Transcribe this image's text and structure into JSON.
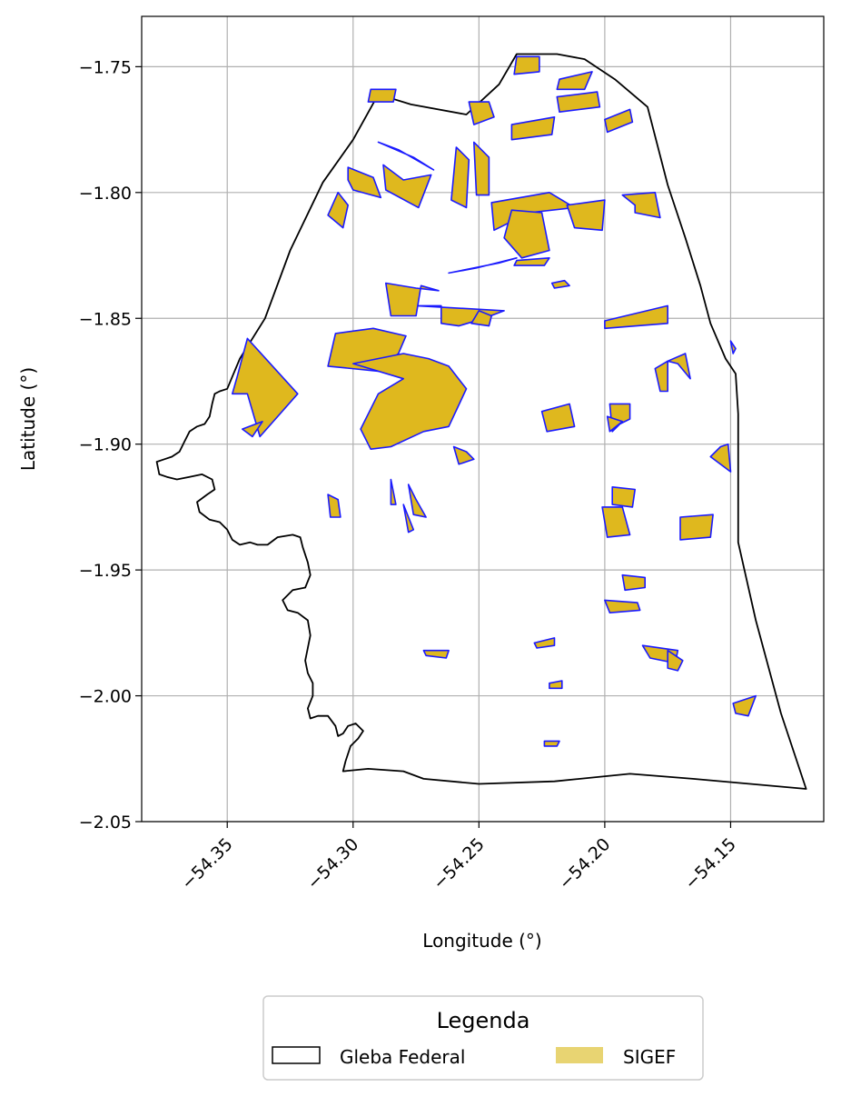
{
  "chart_data": {
    "type": "map",
    "title": "",
    "xlabel": "Longitude (°)",
    "ylabel": "Latitude (°)",
    "xlim": [
      -54.384,
      -54.113
    ],
    "ylim": [
      -2.05,
      -1.73
    ],
    "x_ticks": [
      -54.35,
      -54.3,
      -54.25,
      -54.2,
      -54.15
    ],
    "x_tick_labels": [
      "−54.35",
      "−54.30",
      "−54.25",
      "−54.20",
      "−54.15"
    ],
    "y_ticks": [
      -1.75,
      -1.8,
      -1.85,
      -1.9,
      -1.95,
      -2.0,
      -2.05
    ],
    "y_tick_labels": [
      "−1.75",
      "−1.80",
      "−1.85",
      "−1.90",
      "−1.95",
      "−2.00",
      "−2.05"
    ],
    "grid": true,
    "legend": {
      "title": "Legenda",
      "placement": "bottom-center",
      "entries": [
        {
          "label": "Gleba Federal",
          "style": "outline",
          "edge_color": "#000000",
          "face_color": "#ffffff"
        },
        {
          "label": "SIGEF",
          "style": "fill",
          "face_color": "#e8d472"
        }
      ]
    },
    "colors": {
      "gleba_edge": "#000000",
      "sigef_face": "#dfb81e",
      "sigef_edge": "#1a1aff",
      "grid": "#b0b0b0"
    },
    "gleba_federal": [
      [
        -54.35,
        -1.878
      ],
      [
        -54.345,
        -1.866
      ],
      [
        -54.335,
        -1.85
      ],
      [
        -54.325,
        -1.823
      ],
      [
        -54.312,
        -1.796
      ],
      [
        -54.3,
        -1.779
      ],
      [
        -54.29,
        -1.761
      ],
      [
        -54.277,
        -1.765
      ],
      [
        -54.255,
        -1.769
      ],
      [
        -54.242,
        -1.757
      ],
      [
        -54.235,
        -1.745
      ],
      [
        -54.219,
        -1.745
      ],
      [
        -54.208,
        -1.747
      ],
      [
        -54.196,
        -1.755
      ],
      [
        -54.183,
        -1.766
      ],
      [
        -54.175,
        -1.797
      ],
      [
        -54.168,
        -1.818
      ],
      [
        -54.162,
        -1.837
      ],
      [
        -54.158,
        -1.852
      ],
      [
        -54.152,
        -1.866
      ],
      [
        -54.148,
        -1.872
      ],
      [
        -54.147,
        -1.888
      ],
      [
        -54.147,
        -1.939
      ],
      [
        -54.14,
        -1.97
      ],
      [
        -54.13,
        -2.007
      ],
      [
        -54.12,
        -2.037
      ],
      [
        -54.165,
        -2.033
      ],
      [
        -54.19,
        -2.031
      ],
      [
        -54.22,
        -2.034
      ],
      [
        -54.25,
        -2.035
      ],
      [
        -54.272,
        -2.033
      ],
      [
        -54.28,
        -2.03
      ],
      [
        -54.294,
        -2.029
      ],
      [
        -54.304,
        -2.03
      ],
      [
        -54.303,
        -2.026
      ],
      [
        -54.301,
        -2.02
      ],
      [
        -54.298,
        -2.017
      ],
      [
        -54.296,
        -2.014
      ],
      [
        -54.299,
        -2.011
      ],
      [
        -54.302,
        -2.012
      ],
      [
        -54.304,
        -2.015
      ],
      [
        -54.306,
        -2.016
      ],
      [
        -54.307,
        -2.012
      ],
      [
        -54.31,
        -2.008
      ],
      [
        -54.314,
        -2.008
      ],
      [
        -54.317,
        -2.009
      ],
      [
        -54.318,
        -2.005
      ],
      [
        -54.316,
        -2.0
      ],
      [
        -54.316,
        -1.995
      ],
      [
        -54.318,
        -1.991
      ],
      [
        -54.319,
        -1.986
      ],
      [
        -54.318,
        -1.981
      ],
      [
        -54.317,
        -1.976
      ],
      [
        -54.318,
        -1.97
      ],
      [
        -54.322,
        -1.967
      ],
      [
        -54.326,
        -1.966
      ],
      [
        -54.328,
        -1.962
      ],
      [
        -54.324,
        -1.958
      ],
      [
        -54.319,
        -1.957
      ],
      [
        -54.317,
        -1.952
      ],
      [
        -54.318,
        -1.947
      ],
      [
        -54.32,
        -1.941
      ],
      [
        -54.321,
        -1.937
      ],
      [
        -54.324,
        -1.936
      ],
      [
        -54.33,
        -1.937
      ],
      [
        -54.334,
        -1.94
      ],
      [
        -54.338,
        -1.94
      ],
      [
        -54.341,
        -1.939
      ],
      [
        -54.345,
        -1.94
      ],
      [
        -54.348,
        -1.938
      ],
      [
        -54.35,
        -1.934
      ],
      [
        -54.353,
        -1.931
      ],
      [
        -54.357,
        -1.93
      ],
      [
        -54.361,
        -1.927
      ],
      [
        -54.362,
        -1.923
      ],
      [
        -54.358,
        -1.92
      ],
      [
        -54.355,
        -1.918
      ],
      [
        -54.356,
        -1.914
      ],
      [
        -54.36,
        -1.912
      ],
      [
        -54.365,
        -1.913
      ],
      [
        -54.37,
        -1.914
      ],
      [
        -54.374,
        -1.913
      ],
      [
        -54.377,
        -1.912
      ],
      [
        -54.378,
        -1.907
      ],
      [
        -54.375,
        -1.906
      ],
      [
        -54.372,
        -1.905
      ],
      [
        -54.369,
        -1.903
      ],
      [
        -54.367,
        -1.899
      ],
      [
        -54.365,
        -1.895
      ],
      [
        -54.362,
        -1.893
      ],
      [
        -54.359,
        -1.892
      ],
      [
        -54.357,
        -1.889
      ],
      [
        -54.356,
        -1.884
      ],
      [
        -54.355,
        -1.88
      ],
      [
        -54.353,
        -1.879
      ],
      [
        -54.35,
        -1.878
      ]
    ],
    "sigef_parcels": [
      [
        [
          -54.302,
          -1.79
        ],
        [
          -54.292,
          -1.794
        ],
        [
          -54.289,
          -1.802
        ],
        [
          -54.3,
          -1.799
        ],
        [
          -54.302,
          -1.795
        ]
      ],
      [
        [
          -54.288,
          -1.789
        ],
        [
          -54.28,
          -1.795
        ],
        [
          -54.269,
          -1.793
        ],
        [
          -54.274,
          -1.806
        ],
        [
          -54.287,
          -1.799
        ]
      ],
      [
        [
          -54.29,
          -1.78
        ],
        [
          -54.276,
          -1.786
        ],
        [
          -54.268,
          -1.791
        ],
        [
          -54.282,
          -1.783
        ]
      ],
      [
        [
          -54.306,
          -1.8
        ],
        [
          -54.31,
          -1.809
        ],
        [
          -54.304,
          -1.814
        ],
        [
          -54.302,
          -1.805
        ]
      ],
      [
        [
          -54.294,
          -1.764
        ],
        [
          -54.284,
          -1.764
        ],
        [
          -54.283,
          -1.759
        ],
        [
          -54.293,
          -1.759
        ]
      ],
      [
        [
          -54.259,
          -1.782
        ],
        [
          -54.254,
          -1.787
        ],
        [
          -54.255,
          -1.806
        ],
        [
          -54.261,
          -1.803
        ]
      ],
      [
        [
          -54.252,
          -1.78
        ],
        [
          -54.246,
          -1.786
        ],
        [
          -54.246,
          -1.801
        ],
        [
          -54.251,
          -1.801
        ]
      ],
      [
        [
          -54.236,
          -1.753
        ],
        [
          -54.226,
          -1.752
        ],
        [
          -54.226,
          -1.746
        ],
        [
          -54.235,
          -1.746
        ]
      ],
      [
        [
          -54.218,
          -1.755
        ],
        [
          -54.205,
          -1.752
        ],
        [
          -54.208,
          -1.759
        ],
        [
          -54.219,
          -1.759
        ]
      ],
      [
        [
          -54.219,
          -1.762
        ],
        [
          -54.203,
          -1.76
        ],
        [
          -54.202,
          -1.766
        ],
        [
          -54.218,
          -1.768
        ]
      ],
      [
        [
          -54.237,
          -1.773
        ],
        [
          -54.22,
          -1.77
        ],
        [
          -54.221,
          -1.777
        ],
        [
          -54.237,
          -1.779
        ]
      ],
      [
        [
          -54.254,
          -1.764
        ],
        [
          -54.246,
          -1.764
        ],
        [
          -54.244,
          -1.77
        ],
        [
          -54.252,
          -1.773
        ]
      ],
      [
        [
          -54.2,
          -1.771
        ],
        [
          -54.19,
          -1.767
        ],
        [
          -54.189,
          -1.772
        ],
        [
          -54.199,
          -1.776
        ]
      ],
      [
        [
          -54.245,
          -1.804
        ],
        [
          -54.222,
          -1.8
        ],
        [
          -54.212,
          -1.806
        ],
        [
          -54.23,
          -1.808
        ],
        [
          -54.244,
          -1.815
        ]
      ],
      [
        [
          -54.237,
          -1.807
        ],
        [
          -54.225,
          -1.808
        ],
        [
          -54.222,
          -1.823
        ],
        [
          -54.233,
          -1.826
        ],
        [
          -54.24,
          -1.818
        ]
      ],
      [
        [
          -54.215,
          -1.805
        ],
        [
          -54.212,
          -1.814
        ],
        [
          -54.201,
          -1.815
        ],
        [
          -54.2,
          -1.803
        ]
      ],
      [
        [
          -54.193,
          -1.801
        ],
        [
          -54.188,
          -1.805
        ],
        [
          -54.188,
          -1.808
        ],
        [
          -54.178,
          -1.81
        ],
        [
          -54.18,
          -1.8
        ]
      ],
      [
        [
          -54.262,
          -1.832
        ],
        [
          -54.242,
          -1.828
        ],
        [
          -54.235,
          -1.826
        ],
        [
          -54.251,
          -1.83
        ]
      ],
      [
        [
          -54.235,
          -1.827
        ],
        [
          -54.222,
          -1.826
        ],
        [
          -54.224,
          -1.829
        ],
        [
          -54.236,
          -1.829
        ]
      ],
      [
        [
          -54.221,
          -1.836
        ],
        [
          -54.216,
          -1.835
        ],
        [
          -54.214,
          -1.837
        ],
        [
          -54.22,
          -1.838
        ]
      ],
      [
        [
          -54.275,
          -1.845
        ],
        [
          -54.265,
          -1.845
        ],
        [
          -54.265,
          -1.852
        ],
        [
          -54.258,
          -1.853
        ],
        [
          -54.248,
          -1.85
        ],
        [
          -54.24,
          -1.847
        ]
      ],
      [
        [
          -54.253,
          -1.852
        ],
        [
          -54.25,
          -1.847
        ],
        [
          -54.245,
          -1.849
        ],
        [
          -54.246,
          -1.853
        ]
      ],
      [
        [
          -54.2,
          -1.851
        ],
        [
          -54.175,
          -1.845
        ],
        [
          -54.175,
          -1.852
        ],
        [
          -54.2,
          -1.854
        ]
      ],
      [
        [
          -54.287,
          -1.836
        ],
        [
          -54.285,
          -1.849
        ],
        [
          -54.275,
          -1.849
        ],
        [
          -54.273,
          -1.837
        ],
        [
          -54.266,
          -1.839
        ],
        [
          -54.275,
          -1.838
        ]
      ],
      [
        [
          -54.307,
          -1.856
        ],
        [
          -54.292,
          -1.854
        ],
        [
          -54.279,
          -1.857
        ],
        [
          -54.282,
          -1.864
        ],
        [
          -54.29,
          -1.871
        ],
        [
          -54.31,
          -1.869
        ]
      ],
      [
        [
          -54.3,
          -1.868
        ],
        [
          -54.28,
          -1.864
        ],
        [
          -54.27,
          -1.866
        ],
        [
          -54.262,
          -1.869
        ],
        [
          -54.255,
          -1.878
        ],
        [
          -54.262,
          -1.893
        ],
        [
          -54.272,
          -1.895
        ],
        [
          -54.285,
          -1.901
        ],
        [
          -54.293,
          -1.902
        ],
        [
          -54.297,
          -1.894
        ],
        [
          -54.29,
          -1.88
        ],
        [
          -54.28,
          -1.874
        ]
      ],
      [
        [
          -54.342,
          -1.858
        ],
        [
          -54.346,
          -1.873
        ],
        [
          -54.348,
          -1.88
        ],
        [
          -54.342,
          -1.88
        ],
        [
          -54.337,
          -1.897
        ],
        [
          -54.322,
          -1.88
        ]
      ],
      [
        [
          -54.344,
          -1.894
        ],
        [
          -54.34,
          -1.897
        ],
        [
          -54.336,
          -1.891
        ]
      ],
      [
        [
          -54.26,
          -1.901
        ],
        [
          -54.255,
          -1.903
        ],
        [
          -54.252,
          -1.906
        ],
        [
          -54.258,
          -1.908
        ]
      ],
      [
        [
          -54.225,
          -1.887
        ],
        [
          -54.214,
          -1.884
        ],
        [
          -54.212,
          -1.893
        ],
        [
          -54.223,
          -1.895
        ]
      ],
      [
        [
          -54.198,
          -1.884
        ],
        [
          -54.19,
          -1.884
        ],
        [
          -54.19,
          -1.89
        ],
        [
          -54.194,
          -1.892
        ],
        [
          -54.197,
          -1.895
        ]
      ],
      [
        [
          -54.199,
          -1.889
        ],
        [
          -54.193,
          -1.891
        ],
        [
          -54.198,
          -1.895
        ]
      ],
      [
        [
          -54.18,
          -1.87
        ],
        [
          -54.175,
          -1.867
        ],
        [
          -54.175,
          -1.879
        ],
        [
          -54.178,
          -1.879
        ]
      ],
      [
        [
          -54.175,
          -1.867
        ],
        [
          -54.168,
          -1.864
        ],
        [
          -54.166,
          -1.874
        ],
        [
          -54.171,
          -1.868
        ]
      ],
      [
        [
          -54.151,
          -1.9
        ],
        [
          -54.15,
          -1.911
        ],
        [
          -54.158,
          -1.905
        ],
        [
          -54.154,
          -1.901
        ]
      ],
      [
        [
          -54.15,
          -1.859
        ],
        [
          -54.148,
          -1.862
        ],
        [
          -54.149,
          -1.864
        ]
      ],
      [
        [
          -54.31,
          -1.92
        ],
        [
          -54.306,
          -1.922
        ],
        [
          -54.305,
          -1.929
        ],
        [
          -54.309,
          -1.929
        ]
      ],
      [
        [
          -54.285,
          -1.914
        ],
        [
          -54.283,
          -1.924
        ],
        [
          -54.285,
          -1.924
        ]
      ],
      [
        [
          -54.278,
          -1.916
        ],
        [
          -54.275,
          -1.922
        ],
        [
          -54.271,
          -1.929
        ],
        [
          -54.276,
          -1.928
        ]
      ],
      [
        [
          -54.28,
          -1.924
        ],
        [
          -54.276,
          -1.934
        ],
        [
          -54.278,
          -1.935
        ]
      ],
      [
        [
          -54.197,
          -1.917
        ],
        [
          -54.188,
          -1.918
        ],
        [
          -54.189,
          -1.925
        ],
        [
          -54.197,
          -1.924
        ]
      ],
      [
        [
          -54.201,
          -1.925
        ],
        [
          -54.193,
          -1.925
        ],
        [
          -54.19,
          -1.936
        ],
        [
          -54.199,
          -1.937
        ]
      ],
      [
        [
          -54.17,
          -1.929
        ],
        [
          -54.157,
          -1.928
        ],
        [
          -54.158,
          -1.937
        ],
        [
          -54.17,
          -1.938
        ]
      ],
      [
        [
          -54.193,
          -1.952
        ],
        [
          -54.184,
          -1.953
        ],
        [
          -54.184,
          -1.957
        ],
        [
          -54.192,
          -1.958
        ]
      ],
      [
        [
          -54.2,
          -1.962
        ],
        [
          -54.187,
          -1.963
        ],
        [
          -54.186,
          -1.966
        ],
        [
          -54.198,
          -1.967
        ]
      ],
      [
        [
          -54.272,
          -1.982
        ],
        [
          -54.262,
          -1.982
        ],
        [
          -54.263,
          -1.985
        ],
        [
          -54.271,
          -1.984
        ]
      ],
      [
        [
          -54.228,
          -1.979
        ],
        [
          -54.22,
          -1.977
        ],
        [
          -54.22,
          -1.98
        ],
        [
          -54.227,
          -1.981
        ]
      ],
      [
        [
          -54.185,
          -1.98
        ],
        [
          -54.171,
          -1.982
        ],
        [
          -54.172,
          -1.987
        ],
        [
          -54.182,
          -1.985
        ]
      ],
      [
        [
          -54.175,
          -1.982
        ],
        [
          -54.169,
          -1.986
        ],
        [
          -54.171,
          -1.99
        ],
        [
          -54.175,
          -1.989
        ]
      ],
      [
        [
          -54.222,
          -1.995
        ],
        [
          -54.217,
          -1.994
        ],
        [
          -54.217,
          -1.997
        ],
        [
          -54.222,
          -1.997
        ]
      ],
      [
        [
          -54.224,
          -2.018
        ],
        [
          -54.218,
          -2.018
        ],
        [
          -54.219,
          -2.02
        ],
        [
          -54.224,
          -2.02
        ]
      ],
      [
        [
          -54.149,
          -2.003
        ],
        [
          -54.14,
          -2.0
        ],
        [
          -54.143,
          -2.008
        ],
        [
          -54.148,
          -2.007
        ]
      ]
    ]
  }
}
